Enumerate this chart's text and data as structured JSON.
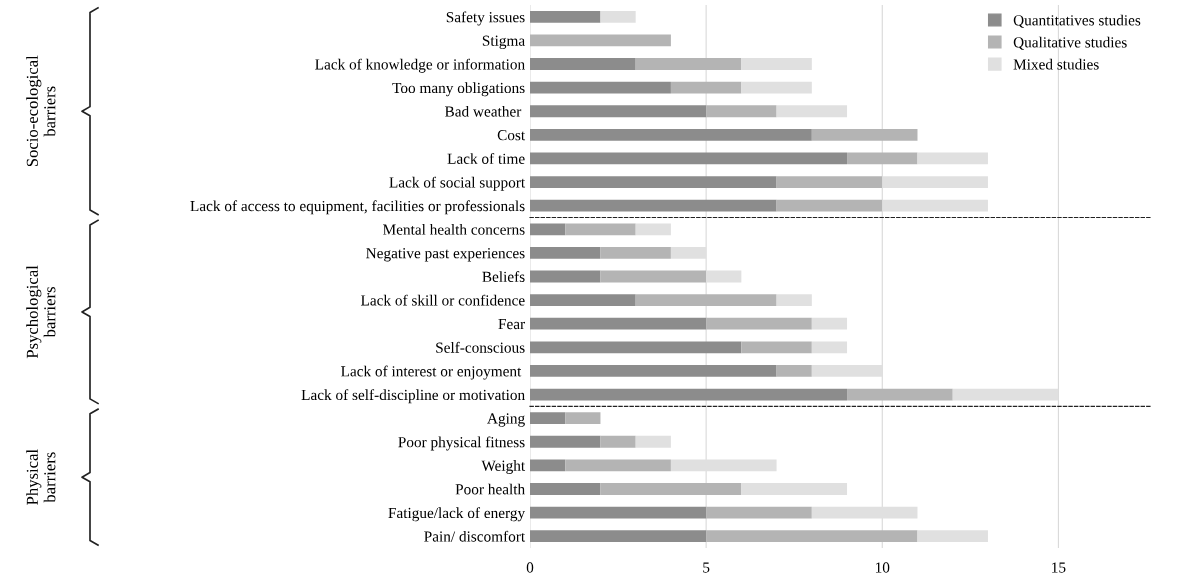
{
  "chart_data": [
    {
      "type": "bar",
      "orientation": "horizontal",
      "stacked": true,
      "ylabel": "Socio-ecological barriers",
      "categories": [
        "Safety issues",
        "Stigma",
        "Lack of knowledge or information",
        "Too many obligations",
        "Bad weather ",
        "Cost",
        "Lack of time",
        "Lack of social support",
        "Lack of access to equipment, facilities or professionals"
      ],
      "series": [
        {
          "name": "Quantitatives studies",
          "color": "#8c8c8c",
          "values": [
            2,
            0,
            3,
            4,
            5,
            8,
            9,
            7,
            7
          ]
        },
        {
          "name": "Qualitative studies",
          "color": "#b4b4b4",
          "values": [
            0,
            4,
            3,
            2,
            2,
            3,
            2,
            3,
            3
          ]
        },
        {
          "name": "Mixed studies",
          "color": "#e0e0e0",
          "values": [
            1,
            0,
            2,
            2,
            2,
            0,
            2,
            3,
            3
          ]
        }
      ],
      "xlim": [
        0,
        17.6
      ],
      "xticks": [
        0,
        5,
        10,
        15
      ],
      "grid": "x",
      "legend": "top right",
      "tick_labels": "y"
    },
    {
      "type": "bar",
      "orientation": "horizontal",
      "stacked": true,
      "ylabel": "Psychological barriers",
      "categories": [
        "Mental health concerns",
        "Negative past experiences",
        "Beliefs",
        "Lack of skill or confidence",
        "Fear",
        "Self-conscious",
        "Lack of interest or enjoyment ",
        "Lack of self-discipline or motivation"
      ],
      "series": [
        {
          "color": "#8c8c8c",
          "values": [
            1,
            2,
            2,
            3,
            5,
            6,
            7,
            9
          ]
        },
        {
          "color": "#b4b4b4",
          "values": [
            2,
            2,
            3,
            4,
            3,
            2,
            1,
            3
          ]
        },
        {
          "color": "#e0e0e0",
          "values": [
            1,
            1,
            1,
            1,
            1,
            1,
            2,
            3
          ]
        }
      ],
      "xlim": [
        0,
        17.6
      ],
      "xticks": [
        0,
        5,
        10,
        15
      ],
      "grid": "x",
      "tick_labels": "y"
    },
    {
      "type": "bar",
      "orientation": "horizontal",
      "stacked": true,
      "ylabel": "Physical barriers",
      "categories": [
        "Aging",
        "Poor physical fitness",
        "Weight",
        "Poor health",
        "Fatigue/lack of energy",
        "Pain/ discomfort"
      ],
      "series": [
        {
          "color": "#8c8c8c",
          "values": [
            1,
            2,
            1,
            2,
            5,
            5
          ]
        },
        {
          "color": "#b4b4b4",
          "values": [
            1,
            1,
            3,
            4,
            3,
            6
          ]
        },
        {
          "color": "#e0e0e0",
          "values": [
            0,
            1,
            3,
            3,
            3,
            2
          ]
        }
      ],
      "xlim": [
        0,
        17.6
      ],
      "xticks": [
        0,
        5,
        10,
        15
      ],
      "grid": "x"
    }
  ]
}
